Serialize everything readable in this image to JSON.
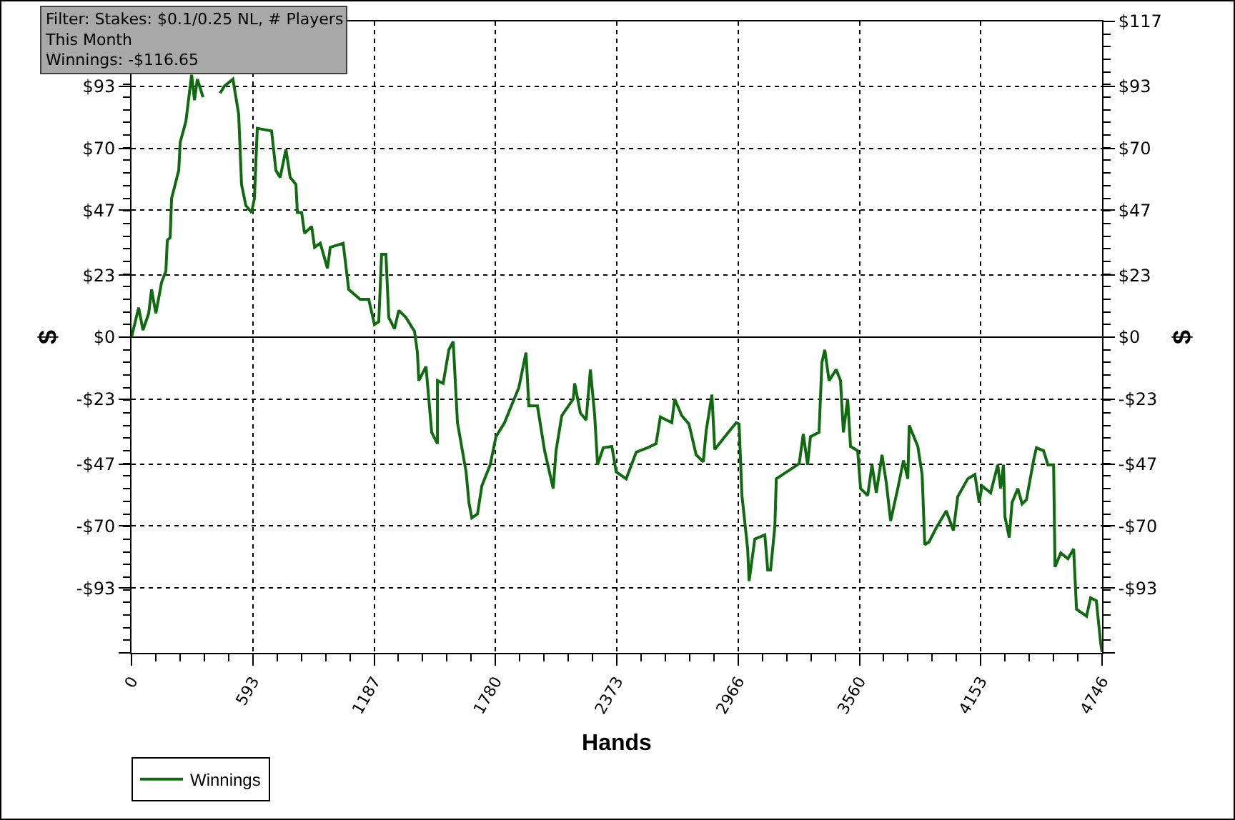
{
  "chart_data": {
    "type": "line",
    "xlabel": "Hands",
    "ylabel": "$",
    "y2label": "$",
    "annotations": [
      "Filter: Stakes: $0.1/0.25 NL, # Players\nThis Month\nWinnings: -$116.65"
    ],
    "x": [
      0,
      35,
      56,
      84,
      98,
      119,
      147,
      168,
      175,
      189,
      196,
      231,
      238,
      266,
      287,
      294,
      308,
      322,
      350,
      363,
      377,
      433,
      454,
      496,
      524,
      538,
      559,
      587,
      601,
      615,
      685,
      706,
      727,
      755,
      776,
      804,
      811,
      832,
      846,
      881,
      895,
      923,
      958,
      972,
      1035,
      1062,
      1118,
      1160,
      1188,
      1209,
      1223,
      1244,
      1258,
      1286,
      1307,
      1342,
      1384,
      1398,
      1405,
      1440,
      1468,
      1496,
      1496,
      1524,
      1552,
      1573,
      1594,
      1636,
      1650,
      1664,
      1692,
      1713,
      1754,
      1782,
      1824,
      1852,
      1894,
      1929,
      1943,
      1985,
      2020,
      2062,
      2076,
      2104,
      2160,
      2167,
      2195,
      2223,
      2244,
      2265,
      2279,
      2307,
      2349,
      2370,
      2419,
      2468,
      2523,
      2565,
      2586,
      2642,
      2656,
      2691,
      2726,
      2761,
      2796,
      2810,
      2838,
      2852,
      2901,
      2957,
      2971,
      2985,
      3013,
      3020,
      3048,
      3097,
      3111,
      3125,
      3146,
      3153,
      3237,
      3265,
      3285,
      3306,
      3320,
      3362,
      3376,
      3390,
      3411,
      3446,
      3467,
      3481,
      3502,
      3516,
      3551,
      3565,
      3600,
      3621,
      3642,
      3670,
      3691,
      3712,
      3747,
      3775,
      3796,
      3803,
      3845,
      3866,
      3879,
      3900,
      3935,
      3984,
      4019,
      4040,
      4089,
      4124,
      4145,
      4159,
      4201,
      4236,
      4250,
      4264,
      4271,
      4292,
      4306,
      4334,
      4355,
      4376,
      4411,
      4425,
      4460,
      4481,
      4509,
      4516,
      4544,
      4579,
      4607,
      4621,
      4670,
      4690,
      4718,
      4739,
      4746
    ],
    "series": [
      {
        "name": "Winnings",
        "color": "#106b10",
        "values": [
          0,
          10.9,
          2.6,
          8.8,
          17.7,
          8.8,
          20.3,
          24.4,
          35.9,
          36.9,
          51.4,
          61.8,
          72.2,
          80.0,
          93.0,
          97.2,
          87.8,
          95.6,
          88.9,
          null,
          null,
          90.4,
          93.0,
          95.6,
          82.6,
          56.6,
          48.8,
          46.2,
          51.4,
          77.4,
          76.4,
          61.8,
          59.2,
          69.6,
          59.2,
          56.6,
          46.2,
          46.2,
          38.5,
          41.0,
          33.3,
          34.8,
          25.5,
          33.3,
          34.8,
          17.7,
          14.0,
          14.0,
          4.7,
          5.7,
          30.7,
          30.7,
          7.3,
          3.1,
          9.9,
          7.3,
          2.1,
          -5.7,
          -16.1,
          -10.9,
          -35.3,
          -39.5,
          -16.1,
          -17.1,
          -4.7,
          -1.6,
          -31.7,
          -49.9,
          -61.3,
          -67.0,
          -65.5,
          -55.1,
          -47.3,
          -36.9,
          -31.7,
          -26.5,
          -18.7,
          -5.7,
          -25.5,
          -25.5,
          -42.1,
          -56.1,
          -42.1,
          -29.1,
          -22.9,
          -17.1,
          -28.1,
          -30.7,
          -12.0,
          -29.1,
          -47.3,
          -41.0,
          -40.5,
          -49.9,
          -52.5,
          -42.6,
          -41.0,
          -39.5,
          -29.6,
          -31.7,
          -22.9,
          -29.1,
          -32.2,
          -43.6,
          -46.2,
          -34.8,
          -21.3,
          -41.6,
          -36.9,
          -31.7,
          -32.2,
          -58.7,
          -78.5,
          -90.4,
          -74.8,
          -73.3,
          -86.3,
          -86.3,
          -70.1,
          -52.5,
          -48.3,
          -46.8,
          -35.9,
          -47.3,
          -36.9,
          -35.3,
          -9.4,
          -4.7,
          -16.1,
          -12.0,
          -16.1,
          -35.3,
          -22.9,
          -40.5,
          -42.1,
          -56.1,
          -58.7,
          -47.3,
          -57.7,
          -43.6,
          -54.0,
          -68.1,
          -56.1,
          -45.7,
          -52.5,
          -32.7,
          -40.5,
          -50.9,
          -76.9,
          -75.9,
          -70.7,
          -64.4,
          -71.7,
          -59.2,
          -52.5,
          -50.9,
          -61.3,
          -55.1,
          -57.7,
          -47.3,
          -56.1,
          -47.3,
          -66.5,
          -74.3,
          -61.3,
          -56.1,
          -61.8,
          -60.3,
          -45.7,
          -41.0,
          -42.1,
          -47.3,
          -47.3,
          -85.2,
          -80.0,
          -82.1,
          -78.5,
          -100.8,
          -103.4,
          -96.6,
          -97.7,
          -113.3,
          -116.7
        ]
      }
    ],
    "xlim": [
      0,
      4746
    ],
    "xticks": [
      0,
      {
        "value": 593.25,
        "label": "593"
      },
      {
        "value": 1186.5,
        "label": "1187"
      },
      {
        "value": 1779.75,
        "label": "1780"
      },
      {
        "value": 2373,
        "label": "2373"
      },
      {
        "value": 2966.25,
        "label": "2966"
      },
      {
        "value": 3559.5,
        "label": "3560"
      },
      {
        "value": 4152.75,
        "label": "4153"
      },
      4746
    ],
    "ylim": [
      -117,
      117
    ],
    "yticks": [
      {
        "value": -117,
        "label": null
      },
      {
        "value": -93,
        "label": "-$93"
      },
      {
        "value": -70,
        "label": "-$70"
      },
      {
        "value": -47,
        "label": "-$47"
      },
      {
        "value": -23,
        "label": "-$23"
      },
      {
        "value": 0,
        "label": "$0"
      },
      {
        "value": 23,
        "label": "$23"
      },
      {
        "value": 47,
        "label": "$47"
      },
      {
        "value": 70,
        "label": "$70"
      },
      {
        "value": 93,
        "label": "$93"
      }
    ],
    "y2lim": [
      -117,
      117
    ],
    "y2ticks": [
      {
        "value": -117,
        "label": null
      },
      {
        "value": -93,
        "label": "-$93"
      },
      {
        "value": -70,
        "label": "-$70"
      },
      {
        "value": -47,
        "label": "-$47"
      },
      {
        "value": -23,
        "label": "-$23"
      },
      {
        "value": 0,
        "label": "$0"
      },
      {
        "value": 23,
        "label": "$23"
      },
      {
        "value": 47,
        "label": "$47"
      },
      {
        "value": 70,
        "label": "$70"
      },
      {
        "value": 93,
        "label": "$93"
      },
      {
        "value": 117,
        "label": "$117"
      }
    ],
    "ref_lines": [
      {
        "axis": "y",
        "value": 0,
        "color": "#000000",
        "line_style": "solid"
      }
    ],
    "grid": true,
    "legend": "bottom left",
    "marker": "none",
    "line_style": "solid"
  }
}
